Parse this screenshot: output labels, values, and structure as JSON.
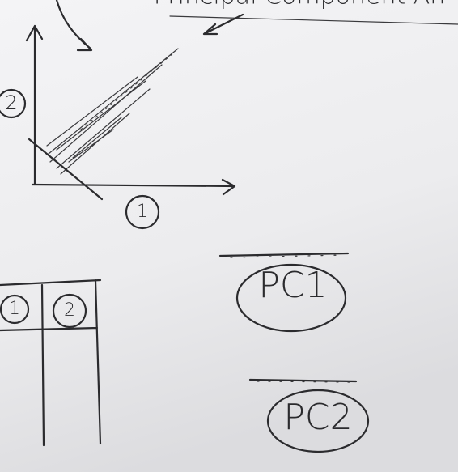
{
  "header": {
    "title": "Principal Component An"
  },
  "axes": {
    "y_label": "2",
    "x_label": "1"
  },
  "table": {
    "headers": [
      "1",
      "2"
    ]
  },
  "components": [
    {
      "label": "PC1"
    },
    {
      "label": "PC2"
    }
  ]
}
